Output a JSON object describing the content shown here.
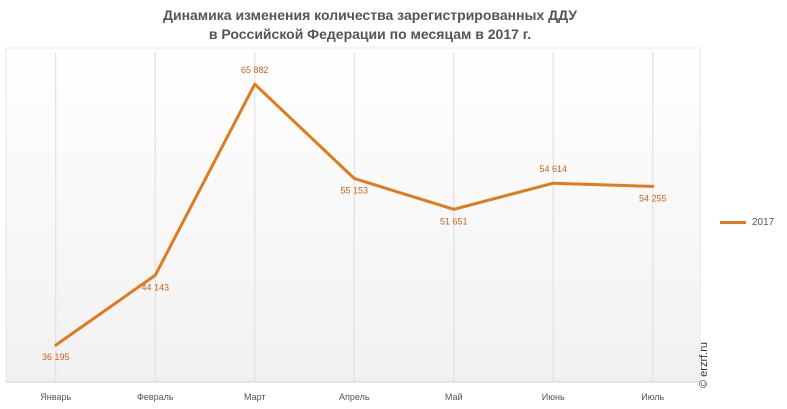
{
  "title": {
    "line1": "Динамика изменения количества зарегистрированных ДДУ",
    "line2": "в Российской Федерации по месяцам в 2017 г."
  },
  "watermark": "© erzrf.ru",
  "chart_data": {
    "type": "line",
    "categories": [
      "Январь",
      "Февраль",
      "Март",
      "Апрель",
      "Май",
      "Июнь",
      "Июль"
    ],
    "series": [
      {
        "name": "2017",
        "color": "#e07a1f",
        "values": [
          36195,
          44143,
          65882,
          55153,
          51651,
          54614,
          54255
        ],
        "labels": [
          "36 195",
          "44 143",
          "65 882",
          "55 153",
          "51 651",
          "54 614",
          "54 255"
        ]
      }
    ],
    "ylim": [
      32000,
      70000
    ],
    "grid": "vertical",
    "legend": "right"
  }
}
